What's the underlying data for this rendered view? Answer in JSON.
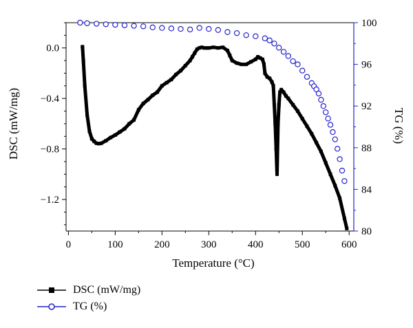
{
  "chart_data": {
    "type": "line",
    "xlabel": "Temperature (°C)",
    "xlim": [
      -5,
      610
    ],
    "x_ticks": [
      0,
      100,
      200,
      300,
      400,
      500,
      600
    ],
    "y_left": {
      "label": "DSC (mW/mg)",
      "lim": [
        -1.45,
        0.2
      ],
      "ticks": [
        0.0,
        -0.4,
        -0.8,
        -1.2
      ],
      "tick_labels": [
        "0.0",
        "−0.4",
        "−0.8",
        "−1.2"
      ]
    },
    "y_right": {
      "label": "TG (%)",
      "lim": [
        80,
        100
      ],
      "ticks": [
        100,
        96,
        92,
        88,
        84,
        80
      ],
      "tick_labels": [
        "100",
        "96",
        "92",
        "88",
        "84",
        "80"
      ],
      "color": "#2222cc"
    },
    "series": [
      {
        "name": "DSC (mW/mg)",
        "axis": "left",
        "color": "#000000",
        "marker": "square",
        "x": [
          30,
          32,
          35,
          40,
          45,
          50,
          55,
          60,
          65,
          70,
          80,
          90,
          100,
          110,
          120,
          130,
          140,
          150,
          160,
          170,
          180,
          190,
          200,
          210,
          220,
          230,
          240,
          250,
          260,
          265,
          270,
          275,
          280,
          285,
          290,
          295,
          300,
          310,
          320,
          330,
          340,
          345,
          350,
          360,
          370,
          380,
          390,
          400,
          405,
          410,
          415,
          418,
          420,
          425,
          430,
          435,
          438,
          440,
          442,
          444,
          446,
          448,
          450,
          452,
          455,
          460,
          465,
          470,
          480,
          490,
          500,
          510,
          520,
          530,
          540,
          550,
          560,
          570,
          580,
          590,
          595
        ],
        "y": [
          0.01,
          -0.1,
          -0.3,
          -0.53,
          -0.66,
          -0.72,
          -0.74,
          -0.755,
          -0.758,
          -0.755,
          -0.735,
          -0.71,
          -0.69,
          -0.665,
          -0.64,
          -0.6,
          -0.57,
          -0.49,
          -0.44,
          -0.41,
          -0.375,
          -0.35,
          -0.3,
          -0.275,
          -0.25,
          -0.21,
          -0.18,
          -0.14,
          -0.1,
          -0.07,
          -0.04,
          -0.01,
          0.0,
          0.005,
          0.0,
          0.0,
          0.0,
          0.005,
          0.0,
          0.005,
          -0.02,
          -0.06,
          -0.1,
          -0.12,
          -0.13,
          -0.13,
          -0.11,
          -0.09,
          -0.07,
          -0.08,
          -0.09,
          -0.13,
          -0.2,
          -0.23,
          -0.24,
          -0.27,
          -0.3,
          -0.45,
          -0.6,
          -0.8,
          -1.0,
          -0.6,
          -0.45,
          -0.35,
          -0.33,
          -0.35,
          -0.38,
          -0.4,
          -0.45,
          -0.5,
          -0.56,
          -0.62,
          -0.68,
          -0.75,
          -0.82,
          -0.91,
          -1.0,
          -1.09,
          -1.19,
          -1.35,
          -1.43
        ]
      },
      {
        "name": "TG (%)",
        "axis": "right",
        "color": "#2222cc",
        "marker": "open-circle",
        "x": [
          25,
          40,
          60,
          80,
          100,
          120,
          140,
          160,
          180,
          200,
          220,
          240,
          260,
          280,
          300,
          320,
          340,
          360,
          380,
          400,
          420,
          430,
          440,
          450,
          460,
          470,
          480,
          490,
          500,
          510,
          520,
          525,
          530,
          535,
          540,
          545,
          550,
          555,
          560,
          565,
          570,
          575,
          580,
          585,
          590
        ],
        "y": [
          100,
          99.95,
          99.9,
          99.85,
          99.8,
          99.75,
          99.7,
          99.65,
          99.55,
          99.5,
          99.45,
          99.4,
          99.35,
          99.5,
          99.4,
          99.3,
          99.1,
          99.0,
          98.8,
          98.7,
          98.5,
          98.3,
          98.0,
          97.6,
          97.2,
          96.8,
          96.3,
          96.0,
          95.4,
          94.8,
          94.2,
          93.9,
          93.6,
          93.2,
          92.6,
          92.0,
          91.4,
          90.8,
          90.2,
          89.5,
          88.8,
          87.9,
          86.9,
          85.8,
          84.8
        ]
      }
    ]
  }
}
